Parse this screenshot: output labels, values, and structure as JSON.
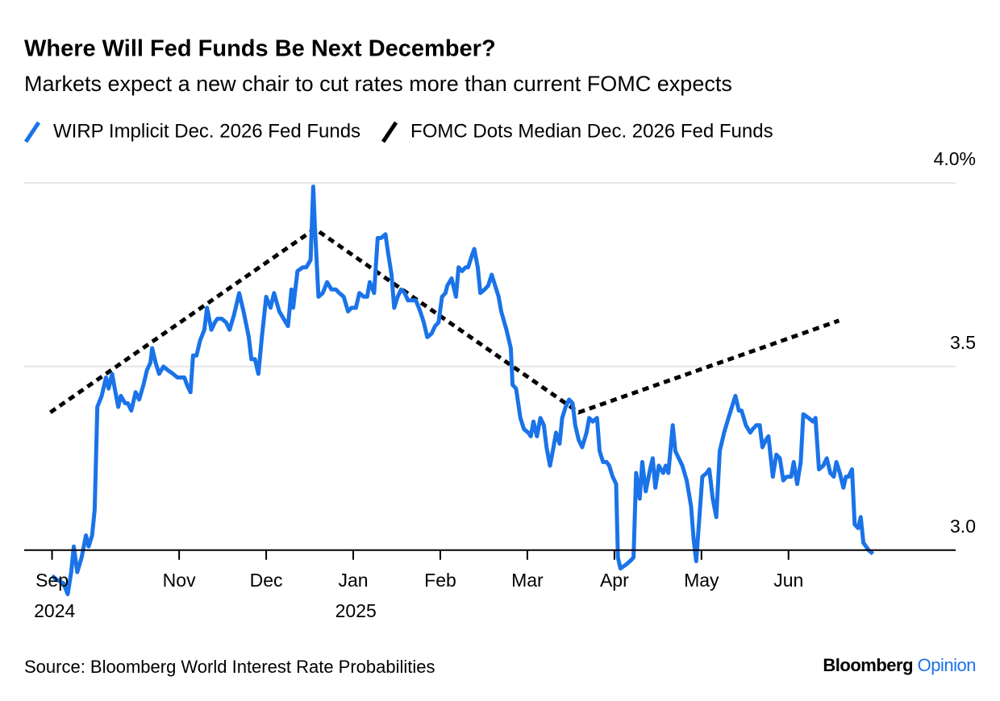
{
  "chart_data": {
    "type": "line",
    "title": "Where Will Fed Funds Be Next December?",
    "subtitle": "Markets expect a new chair to cut rates more than current FOMC expects",
    "source": "Source: Bloomberg World Interest Rate Probabilities",
    "brand": "Bloomberg",
    "brand_suffix": "Opinion",
    "brand_suffix_color": "#1a73e8",
    "grid": true,
    "legend": "top-left",
    "xlim": [
      9.22,
      19.92
    ],
    "ylim": [
      2.87,
      4.0
    ],
    "xticks": [
      {
        "value": 9.54,
        "label": "Sep 2024"
      },
      {
        "value": 11,
        "label": "Nov"
      },
      {
        "value": 12,
        "label": "Dec"
      },
      {
        "value": 13,
        "label": "Jan 2025"
      },
      {
        "value": 14,
        "label": "Feb"
      },
      {
        "value": 15,
        "label": "Mar"
      },
      {
        "value": 16,
        "label": "Apr"
      },
      {
        "value": 17,
        "label": "May"
      },
      {
        "value": 18,
        "label": "Jun"
      }
    ],
    "yticks": [
      {
        "value": 3,
        "label": "3.0"
      },
      3.5,
      {
        "value": 4,
        "label": "4.0%"
      }
    ],
    "series": [
      {
        "name": "WIRP Implicit Dec. 2026 Fed Funds",
        "color": "#1a73e8",
        "style": "solid",
        "x": [
          9.54,
          9.59,
          9.67,
          9.72,
          9.76,
          9.79,
          9.83,
          9.88,
          9.93,
          9.96,
          10.0,
          10.03,
          10.06,
          10.11,
          10.16,
          10.19,
          10.23,
          10.26,
          10.3,
          10.33,
          10.38,
          10.41,
          10.45,
          10.5,
          10.54,
          10.59,
          10.63,
          10.67,
          10.69,
          10.73,
          10.77,
          10.82,
          10.87,
          10.93,
          10.98,
          11.06,
          11.09,
          11.13,
          11.16,
          11.2,
          11.24,
          11.29,
          11.32,
          11.37,
          11.41,
          11.44,
          11.49,
          11.54,
          11.58,
          11.63,
          11.69,
          11.74,
          11.8,
          11.83,
          11.87,
          11.91,
          11.95,
          12.0,
          12.05,
          12.09,
          12.15,
          12.2,
          12.25,
          12.29,
          12.31,
          12.36,
          12.42,
          12.46,
          12.51,
          12.54,
          12.56,
          12.6,
          12.65,
          12.7,
          12.75,
          12.8,
          12.84,
          12.89,
          12.94,
          12.98,
          13.03,
          13.07,
          13.12,
          13.16,
          13.19,
          13.24,
          13.28,
          13.32,
          13.37,
          13.4,
          13.44,
          13.47,
          13.51,
          13.55,
          13.59,
          13.63,
          13.68,
          13.72,
          13.77,
          13.81,
          13.85,
          13.9,
          13.94,
          13.98,
          14.02,
          14.06,
          14.08,
          14.13,
          14.18,
          14.21,
          14.25,
          14.29,
          14.32,
          14.36,
          14.39,
          14.43,
          14.46,
          14.51,
          14.55,
          14.59,
          14.63,
          14.67,
          14.7,
          14.76,
          14.81,
          14.83,
          14.87,
          14.92,
          14.96,
          15.01,
          15.04,
          15.07,
          15.11,
          15.15,
          15.19,
          15.22,
          15.26,
          15.3,
          15.33,
          15.37,
          15.4,
          15.44,
          15.48,
          15.52,
          15.55,
          15.59,
          15.63,
          15.68,
          15.71,
          15.75,
          15.8,
          15.83,
          15.87,
          15.91,
          15.94,
          15.98,
          16.02,
          16.04,
          16.07,
          16.13,
          16.18,
          16.22,
          16.25,
          16.29,
          16.32,
          16.36,
          16.41,
          16.44,
          16.47,
          16.51,
          16.56,
          16.59,
          16.62,
          16.67,
          16.7,
          16.74,
          16.78,
          16.83,
          16.88,
          16.91,
          16.94,
          16.97,
          17.01,
          17.06,
          17.09,
          17.13,
          17.17,
          17.21,
          17.26,
          17.31,
          17.35,
          17.39,
          17.43,
          17.46,
          17.51,
          17.56,
          17.59,
          17.63,
          17.67,
          17.7,
          17.74,
          17.77,
          17.82,
          17.86,
          17.9,
          17.94,
          17.98,
          18.03,
          18.06,
          18.1,
          18.14,
          18.17,
          18.23,
          18.28,
          18.31,
          18.35,
          18.4,
          18.44,
          18.48,
          18.52,
          18.55,
          18.59,
          18.63,
          18.66,
          18.69,
          18.73,
          18.76,
          18.8,
          18.83,
          18.86,
          18.92,
          18.97
        ],
        "values": [
          2.93,
          2.92,
          2.91,
          2.88,
          2.94,
          3.01,
          2.94,
          2.98,
          3.04,
          3.01,
          3.04,
          3.11,
          3.39,
          3.42,
          3.47,
          3.44,
          3.48,
          3.44,
          3.39,
          3.42,
          3.4,
          3.4,
          3.38,
          3.43,
          3.41,
          3.45,
          3.49,
          3.51,
          3.55,
          3.51,
          3.48,
          3.5,
          3.49,
          3.48,
          3.47,
          3.47,
          3.45,
          3.43,
          3.53,
          3.53,
          3.57,
          3.6,
          3.66,
          3.6,
          3.62,
          3.63,
          3.63,
          3.62,
          3.6,
          3.64,
          3.7,
          3.65,
          3.58,
          3.52,
          3.52,
          3.48,
          3.58,
          3.69,
          3.66,
          3.7,
          3.65,
          3.63,
          3.61,
          3.71,
          3.66,
          3.76,
          3.77,
          3.77,
          3.79,
          3.99,
          3.88,
          3.69,
          3.7,
          3.73,
          3.71,
          3.71,
          3.7,
          3.69,
          3.65,
          3.66,
          3.66,
          3.7,
          3.69,
          3.69,
          3.73,
          3.7,
          3.85,
          3.85,
          3.86,
          3.81,
          3.75,
          3.66,
          3.69,
          3.71,
          3.7,
          3.68,
          3.68,
          3.68,
          3.65,
          3.62,
          3.58,
          3.59,
          3.61,
          3.62,
          3.69,
          3.7,
          3.72,
          3.74,
          3.69,
          3.77,
          3.76,
          3.77,
          3.77,
          3.8,
          3.82,
          3.77,
          3.7,
          3.71,
          3.72,
          3.75,
          3.72,
          3.69,
          3.65,
          3.6,
          3.55,
          3.45,
          3.44,
          3.36,
          3.33,
          3.32,
          3.31,
          3.35,
          3.31,
          3.36,
          3.34,
          3.28,
          3.23,
          3.28,
          3.32,
          3.29,
          3.36,
          3.39,
          3.41,
          3.4,
          3.34,
          3.3,
          3.28,
          3.32,
          3.36,
          3.35,
          3.36,
          3.27,
          3.24,
          3.24,
          3.23,
          3.2,
          3.18,
          2.98,
          2.95,
          2.96,
          2.97,
          2.98,
          3.21,
          3.14,
          3.24,
          3.16,
          3.22,
          3.25,
          3.17,
          3.23,
          3.21,
          3.23,
          3.21,
          3.34,
          3.27,
          3.25,
          3.23,
          3.19,
          3.12,
          3.03,
          2.97,
          3.07,
          3.2,
          3.21,
          3.22,
          3.14,
          3.09,
          3.27,
          3.32,
          3.36,
          3.39,
          3.42,
          3.38,
          3.38,
          3.34,
          3.32,
          3.33,
          3.34,
          3.34,
          3.28,
          3.3,
          3.31,
          3.2,
          3.26,
          3.25,
          3.19,
          3.2,
          3.2,
          3.24,
          3.18,
          3.24,
          3.37,
          3.36,
          3.35,
          3.36,
          3.22,
          3.23,
          3.25,
          3.21,
          3.2,
          3.24,
          3.21,
          3.17,
          3.2,
          3.2,
          3.22,
          3.07,
          3.06,
          3.09,
          3.02,
          3.0,
          2.99
        ]
      },
      {
        "name": "FOMC Dots Median Dec. 2026 Fed Funds",
        "color": "#000000",
        "style": "dashed",
        "x": [
          9.52,
          12.56,
          15.59,
          18.58
        ],
        "values": [
          3.375,
          3.875,
          3.375,
          3.625
        ]
      }
    ]
  }
}
